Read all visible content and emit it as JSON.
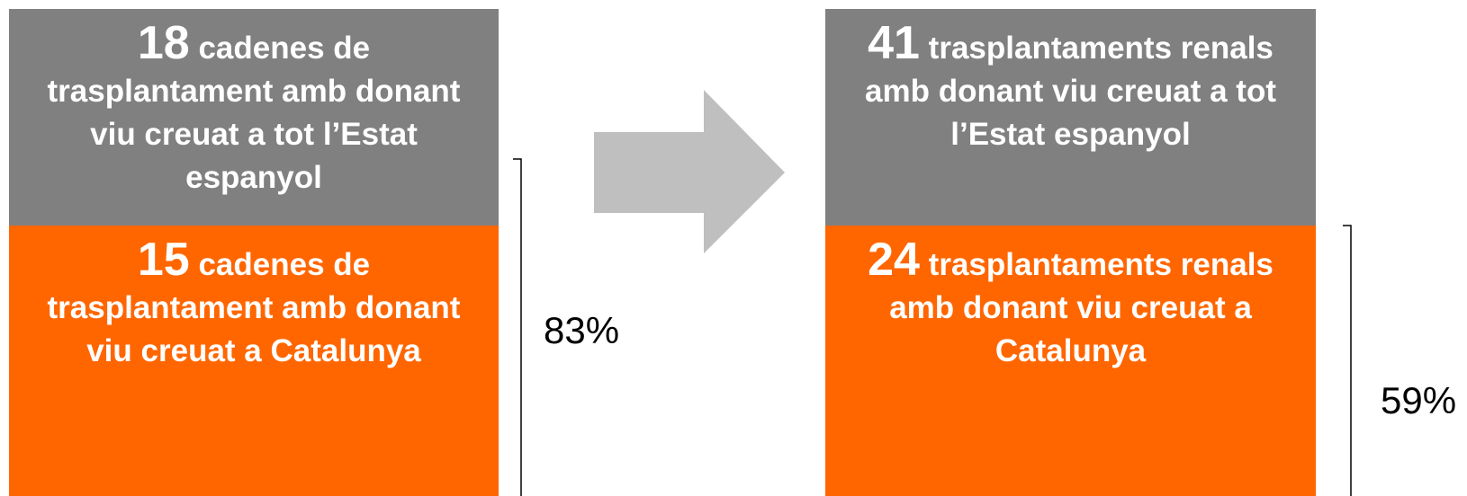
{
  "panels": [
    {
      "top": {
        "number": 18,
        "text": "cadenes de trasplantament amb donant viu creuat a tot l’Estat espanyol"
      },
      "bottom": {
        "number": 15,
        "text": "cadenes de trasplantament amb donant viu creuat a Catalunya"
      },
      "percent": "83%"
    },
    {
      "top": {
        "number": 41,
        "text": "trasplantaments renals amb donant viu creuat a tot l’Estat espanyol"
      },
      "bottom": {
        "number": 24,
        "text": "trasplantaments renals amb donant viu creuat a Catalunya"
      },
      "percent": "59%"
    }
  ]
}
